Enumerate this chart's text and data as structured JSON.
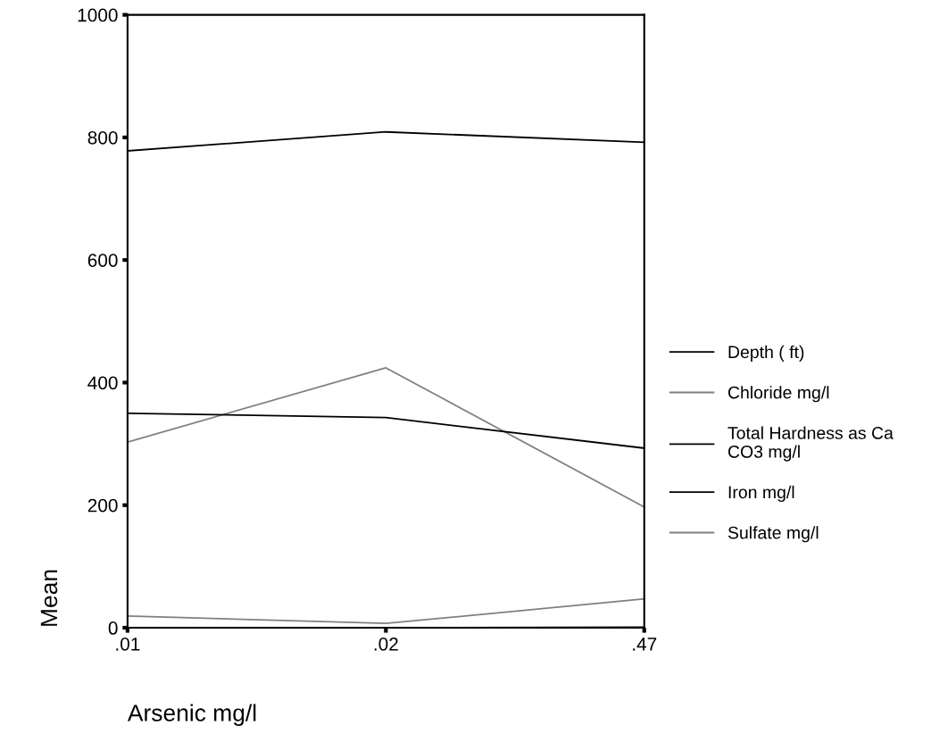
{
  "chart_data": {
    "type": "line",
    "xlabel": "Arsenic mg/l",
    "ylabel": "Mean",
    "categories": [
      ".01",
      ".02",
      ".47"
    ],
    "series": [
      {
        "name": "Depth ( ft)",
        "color": "#000000",
        "values": [
          778,
          809,
          792
        ]
      },
      {
        "name": "Chloride mg/l",
        "color": "#808080",
        "values": [
          303,
          424,
          197
        ]
      },
      {
        "name": "Total Hardness as Ca\nCO3 mg/l",
        "color": "#000000",
        "values": [
          350,
          343,
          293
        ]
      },
      {
        "name": "Iron mg/l",
        "color": "#000000",
        "values": [
          0,
          0,
          1
        ]
      },
      {
        "name": "Sulfate mg/l",
        "color": "#808080",
        "values": [
          19,
          7,
          47
        ]
      }
    ],
    "ylim": [
      0,
      1000
    ],
    "yticks": [
      0,
      200,
      400,
      600,
      800,
      1000
    ],
    "grid": false,
    "legend": "right",
    "marker": "none",
    "line_style": "solid"
  }
}
